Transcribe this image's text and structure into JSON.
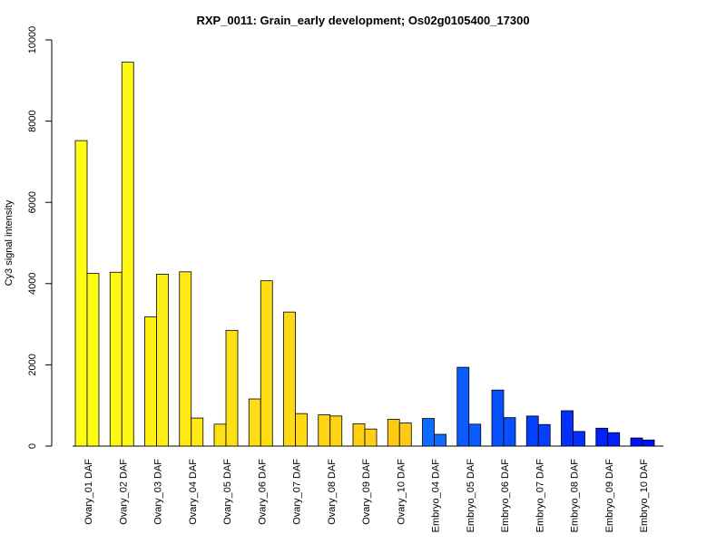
{
  "chart_data": {
    "type": "bar",
    "title": "RXP_0011: Grain_early development; Os02g0105400_17300",
    "xlabel": "",
    "ylabel": "Cy3 signal intensity",
    "ylim": [
      0,
      10000
    ],
    "yticks": [
      0,
      2000,
      4000,
      6000,
      8000,
      10000
    ],
    "grid": false,
    "legend": "none",
    "categories": [
      "Ovary_01 DAF",
      "Ovary_02 DAF",
      "Ovary_03 DAF",
      "Ovary_04 DAF",
      "Ovary_05 DAF",
      "Ovary_06 DAF",
      "Ovary_07 DAF",
      "Ovary_08 DAF",
      "Ovary_09 DAF",
      "Ovary_10 DAF",
      "Embryo_04 DAF",
      "Embryo_05 DAF",
      "Embryo_06 DAF",
      "Embryo_07 DAF",
      "Embryo_08 DAF",
      "Embryo_09 DAF",
      "Embryo_10 DAF"
    ],
    "colors": [
      "#FFFF14",
      "#FFF814",
      "#FFF014",
      "#FFE814",
      "#FFE014",
      "#FFDD14",
      "#FFD914",
      "#FFD414",
      "#FFCF14",
      "#FFCA14",
      "#0F6AFF",
      "#0B5CFF",
      "#084FFF",
      "#0540FF",
      "#0330FF",
      "#0220FF",
      "#0010FF"
    ],
    "series": [
      {
        "values": [
          7520,
          4280,
          3180,
          4290,
          540,
          1160,
          3300,
          770,
          550,
          660,
          680,
          1940,
          1380,
          740,
          870,
          440,
          200
        ]
      },
      {
        "values": [
          4250,
          9450,
          4230,
          690,
          2850,
          4070,
          800,
          740,
          420,
          570,
          290,
          540,
          700,
          530,
          360,
          330,
          150
        ]
      }
    ]
  }
}
